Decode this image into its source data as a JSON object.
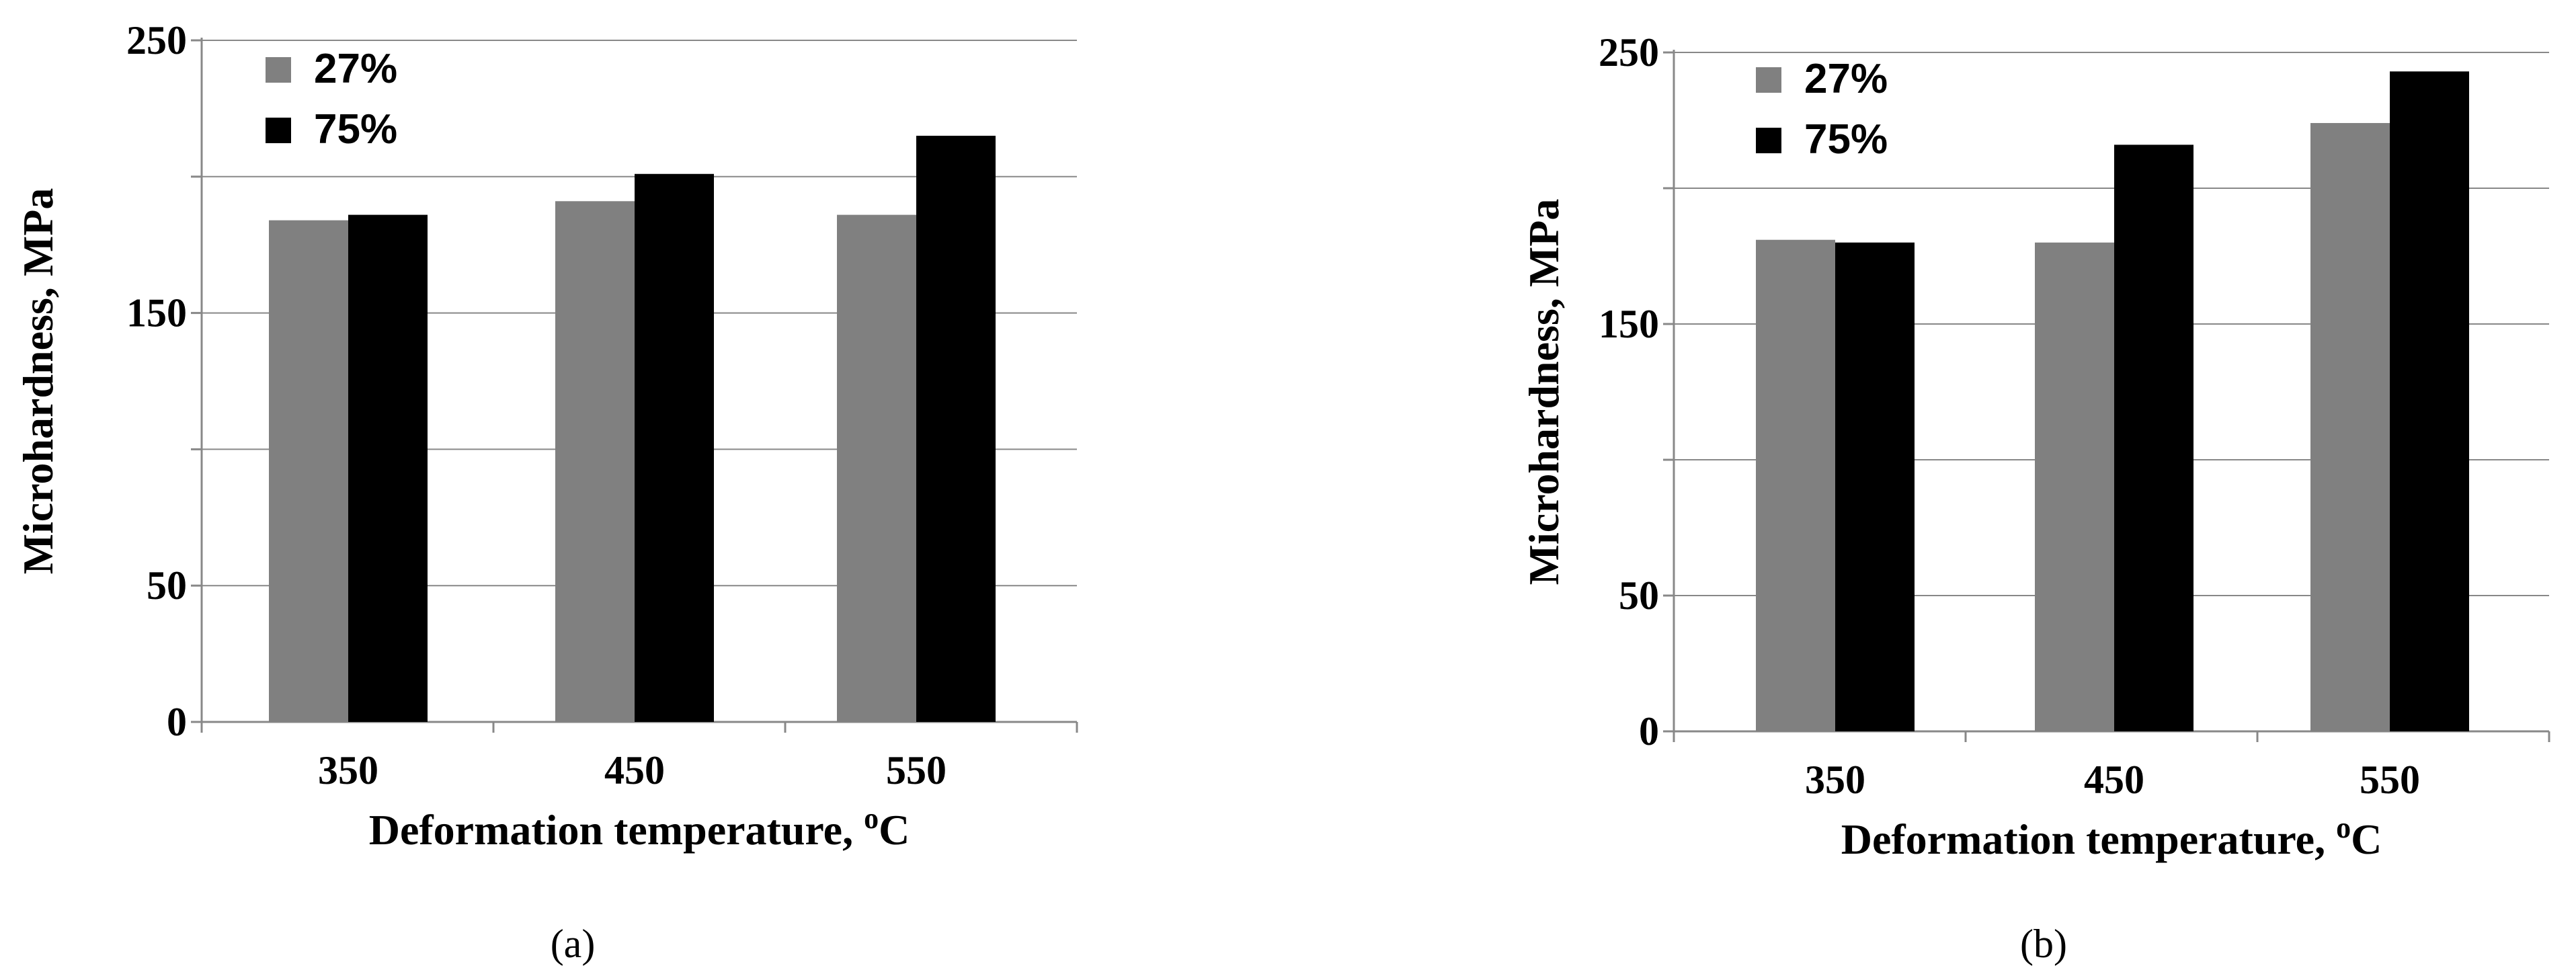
{
  "chart_data": [
    {
      "type": "bar",
      "panel_label": "(a)",
      "categories": [
        "350",
        "450",
        "550"
      ],
      "series": [
        {
          "name": "27%",
          "color": "#808080",
          "values": [
            184,
            191,
            186
          ]
        },
        {
          "name": "75%",
          "color": "#000000",
          "values": [
            186,
            201,
            215
          ]
        }
      ],
      "xlabel": "Deformation temperature, ",
      "xlabel_sup": "o",
      "xlabel_unit": "C",
      "ylabel": "Microhardness, MPa",
      "ylim": [
        0,
        250
      ],
      "y_ticks_labeled": [
        "0",
        "50",
        "150",
        "250"
      ],
      "grid": true,
      "legend": "top-left"
    },
    {
      "type": "bar",
      "panel_label": "(b)",
      "categories": [
        "350",
        "450",
        "550"
      ],
      "series": [
        {
          "name": "27%",
          "color": "#808080",
          "values": [
            181,
            180,
            224
          ]
        },
        {
          "name": "75%",
          "color": "#000000",
          "values": [
            180,
            216,
            243
          ]
        }
      ],
      "xlabel": "Deformation temperature, ",
      "xlabel_sup": "o",
      "xlabel_unit": "C",
      "ylabel": "Microhardness, MPa",
      "ylim": [
        0,
        250
      ],
      "y_ticks_labeled": [
        "0",
        "50",
        "150",
        "250"
      ],
      "grid": true,
      "legend": "top-left"
    }
  ]
}
